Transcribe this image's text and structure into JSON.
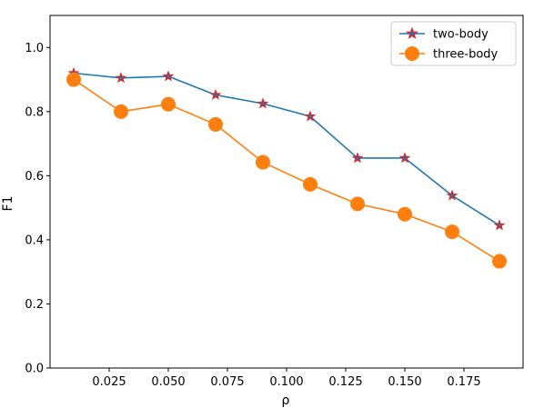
{
  "chart_data": {
    "type": "line",
    "xlabel": "ρ",
    "ylabel": "F1",
    "xlim": [
      0.0,
      0.2
    ],
    "ylim": [
      0.0,
      1.1
    ],
    "xticks": [
      0.025,
      0.05,
      0.075,
      0.1,
      0.125,
      0.15,
      0.175
    ],
    "xtick_labels": [
      "0.025",
      "0.050",
      "0.075",
      "0.100",
      "0.125",
      "0.150",
      "0.175"
    ],
    "yticks": [
      0.0,
      0.2,
      0.4,
      0.6,
      0.8,
      1.0
    ],
    "ytick_labels": [
      "0.0",
      "0.2",
      "0.4",
      "0.6",
      "0.8",
      "1.0"
    ],
    "grid": false,
    "legend_position": "top-right",
    "x": [
      0.01,
      0.03,
      0.05,
      0.07,
      0.09,
      0.11,
      0.13,
      0.15,
      0.17,
      0.19
    ],
    "series": [
      {
        "name": "two-body",
        "color": "#1f77b4",
        "marker": "star",
        "marker_edge": "#d62728",
        "values": [
          0.92,
          0.905,
          0.91,
          0.852,
          0.825,
          0.785,
          0.655,
          0.655,
          0.538,
          0.445
        ]
      },
      {
        "name": "three-body",
        "color": "#ff7f0e",
        "marker": "circle",
        "values": [
          0.9,
          0.8,
          0.823,
          0.76,
          0.642,
          0.573,
          0.512,
          0.48,
          0.425,
          0.333
        ]
      }
    ]
  }
}
